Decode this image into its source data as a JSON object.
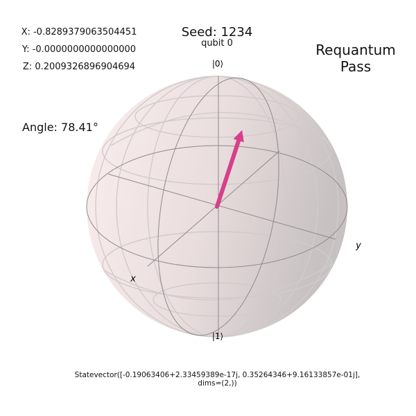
{
  "header": {
    "x_readout": "X: -0.8289379063504451",
    "y_readout": "Y: -0.0000000000000000",
    "z_readout": "Z: 0.2009326896904694",
    "seed": "Seed: 1234",
    "qubit_label": "qubit 0",
    "status_line1": "Requantum",
    "status_line2": "Pass",
    "angle": "Angle: 78.41°"
  },
  "bloch": {
    "ket_zero": "|0⟩",
    "ket_one": "|1⟩",
    "axis_x": "x",
    "axis_y": "y",
    "vector": {
      "x": -0.8289379063504451,
      "y": -0.0,
      "z": 0.2009326896904694
    },
    "colors": {
      "sphere_light": "#fbeeee",
      "sphere_dark": "#cfc9c9",
      "wire": "#9a9595",
      "vector": "#d63f8a"
    }
  },
  "footer": {
    "statevector_line1": "Statevector([-0.19063406+2.33459389e-17j,  0.35264346+9.16133857e-01j],",
    "statevector_line2": "dims=(2,))"
  }
}
